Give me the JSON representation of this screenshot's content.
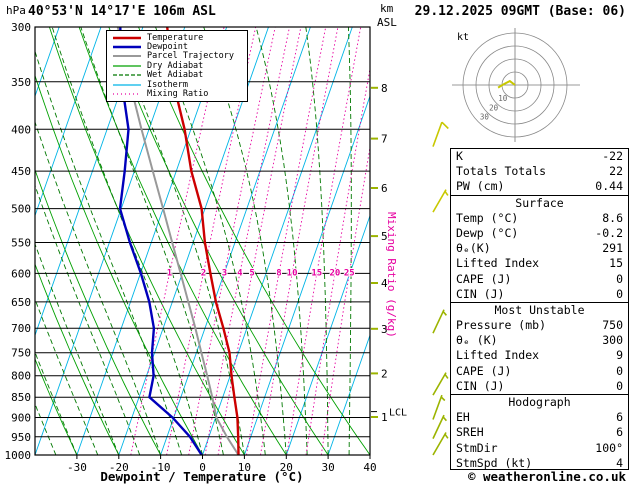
{
  "header": {
    "station": "40°53'N 14°17'E 106m ASL",
    "datetime": "29.12.2025 09GMT (Base: 06)",
    "pressure_unit": "hPa",
    "km_label": "km",
    "asl_label": "ASL"
  },
  "axes": {
    "pressure_ticks": [
      300,
      350,
      400,
      450,
      500,
      550,
      600,
      650,
      700,
      750,
      800,
      850,
      900,
      950,
      1000
    ],
    "km_ticks": [
      8,
      7,
      6,
      5,
      4,
      3,
      2,
      1
    ],
    "temp_ticks": [
      -30,
      -20,
      -10,
      0,
      10,
      20,
      30,
      40
    ],
    "xlabel": "Dewpoint / Temperature (°C)",
    "mixing_ratio_axis_label": "Mixing Ratio (g/kg)",
    "lcl_label": "LCL"
  },
  "legend": {
    "items": [
      {
        "label": "Temperature",
        "color": "#cc0000",
        "width": 2.5,
        "dash": ""
      },
      {
        "label": "Dewpoint",
        "color": "#0000bb",
        "width": 2.5,
        "dash": ""
      },
      {
        "label": "Parcel Trajectory",
        "color": "#999999",
        "width": 2,
        "dash": ""
      },
      {
        "label": "Dry Adiabat",
        "color": "#00a000",
        "width": 1.2,
        "dash": ""
      },
      {
        "label": "Wet Adiabat",
        "color": "#007800",
        "width": 1.2,
        "dash": "4 2"
      },
      {
        "label": "Isotherm",
        "color": "#00b4e6",
        "width": 1.2,
        "dash": ""
      },
      {
        "label": "Mixing Ratio",
        "color": "#e600a0",
        "width": 1.2,
        "dash": "1 3"
      }
    ]
  },
  "chart_data": {
    "type": "skewt_log_p",
    "pressure_range_hpa": [
      300,
      1000
    ],
    "temp_axis_range_c": [
      -40,
      40
    ],
    "mixing_ratio_lines_g_per_kg": [
      1,
      2,
      3,
      4,
      5,
      8,
      10,
      15,
      20,
      25
    ],
    "lcl_pressure_hpa": 885,
    "sounding": {
      "pressure_hpa": [
        1000,
        950,
        900,
        850,
        800,
        750,
        700,
        650,
        600,
        550,
        500,
        450,
        400,
        350,
        300
      ],
      "temperature_c": [
        8.6,
        7.0,
        5.2,
        2.8,
        0.3,
        -2.1,
        -5.6,
        -9.6,
        -13.3,
        -17.2,
        -20.8,
        -26.4,
        -31.5,
        -38.2,
        -44.2
      ],
      "dewpoint_c": [
        -0.2,
        -4.5,
        -10.3,
        -17.5,
        -18.3,
        -20.6,
        -22.2,
        -25.5,
        -29.9,
        -35.1,
        -40.3,
        -42.3,
        -44.9,
        -50.5,
        -55.4
      ],
      "parcel_c": [
        8.6,
        4.3,
        0.2,
        -2.5,
        -5.5,
        -8.8,
        -12.3,
        -16.2,
        -20.4,
        -25.0,
        -30.0,
        -35.6,
        -41.8,
        -48.6,
        -56.0
      ]
    },
    "winds": [
      {
        "pressure_hpa": 420,
        "speed_kt": 10,
        "dir_deg": 20
      },
      {
        "pressure_hpa": 505,
        "speed_kt": 5,
        "dir_deg": 30
      },
      {
        "pressure_hpa": 710,
        "speed_kt": 5,
        "dir_deg": 25
      },
      {
        "pressure_hpa": 845,
        "speed_kt": 5,
        "dir_deg": 30
      },
      {
        "pressure_hpa": 905,
        "speed_kt": 5,
        "dir_deg": 20
      },
      {
        "pressure_hpa": 955,
        "speed_kt": 4,
        "dir_deg": 25
      },
      {
        "pressure_hpa": 1000,
        "speed_kt": 4,
        "dir_deg": 30
      }
    ]
  },
  "hodograph": {
    "unit_label": "kt",
    "ring_radii_kt": [
      10,
      20,
      30,
      40
    ],
    "ring_labels": [
      "10",
      "20",
      "30"
    ],
    "trace_kt": [
      [
        0,
        0
      ],
      [
        -4,
        3
      ],
      [
        -8,
        1
      ],
      [
        -13,
        -2
      ]
    ]
  },
  "panel": {
    "indices": [
      {
        "label": "K",
        "value": "-22"
      },
      {
        "label": "Totals Totals",
        "value": "22"
      },
      {
        "label": "PW (cm)",
        "value": "0.44"
      }
    ],
    "sections": [
      {
        "title": "Surface",
        "rows": [
          {
            "label": "Temp (°C)",
            "value": "8.6"
          },
          {
            "label": "Dewp (°C)",
            "value": "-0.2"
          },
          {
            "label": "θₑ(K)",
            "value": "291"
          },
          {
            "label": "Lifted Index",
            "value": "15"
          },
          {
            "label": "CAPE (J)",
            "value": "0"
          },
          {
            "label": "CIN (J)",
            "value": "0"
          }
        ]
      },
      {
        "title": "Most Unstable",
        "rows": [
          {
            "label": "Pressure (mb)",
            "value": "750"
          },
          {
            "label": "θₑ (K)",
            "value": "300"
          },
          {
            "label": "Lifted Index",
            "value": "9"
          },
          {
            "label": "CAPE (J)",
            "value": "0"
          },
          {
            "label": "CIN (J)",
            "value": "0"
          }
        ]
      },
      {
        "title": "Hodograph",
        "rows": [
          {
            "label": "EH",
            "value": "6"
          },
          {
            "label": "SREH",
            "value": "6"
          },
          {
            "label": "StmDir",
            "value": "100°"
          },
          {
            "label": "StmSpd (kt)",
            "value": "4"
          }
        ]
      }
    ]
  },
  "footer": {
    "copyright": "© weatheronline.co.uk"
  },
  "colors": {
    "temperature": "#cc0000",
    "dewpoint": "#0000bb",
    "parcel": "#999999",
    "isotherm": "#00b4e6",
    "dry_adiabat": "#00a000",
    "wet_adiabat": "#007800",
    "mixing_ratio": "#e600a0",
    "wind_barb_upper": "#c8c800",
    "wind_barb_lower": "#9cb400",
    "frame": "#000000",
    "hodograph_grid": "#888888"
  }
}
